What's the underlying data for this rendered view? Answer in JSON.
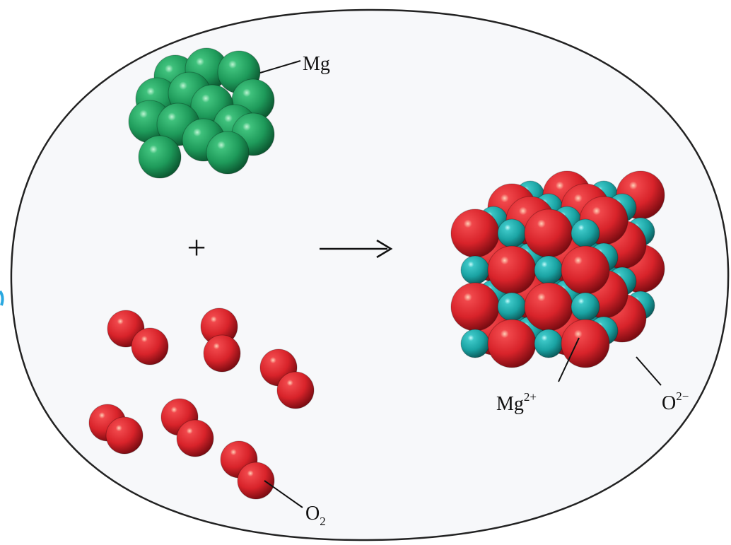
{
  "diagram": {
    "reactants": [
      {
        "id": "magnesium",
        "label": "Mg"
      },
      {
        "id": "oxygen",
        "label_main": "O",
        "label_sub": "2"
      }
    ],
    "operator": "+",
    "arrow": "→",
    "products": [
      {
        "id": "magnesium-ion",
        "label_main": "Mg",
        "label_sup": "2+"
      },
      {
        "id": "oxide-ion",
        "label_main": "O",
        "label_sup": "2−"
      }
    ],
    "colors": {
      "magnesium": "#1e9a5a",
      "oxygen": "#d8232a",
      "magnesium_ion": "#1aa3a3",
      "container_fill": "#f7f8fa",
      "container_stroke": "#222222"
    }
  }
}
